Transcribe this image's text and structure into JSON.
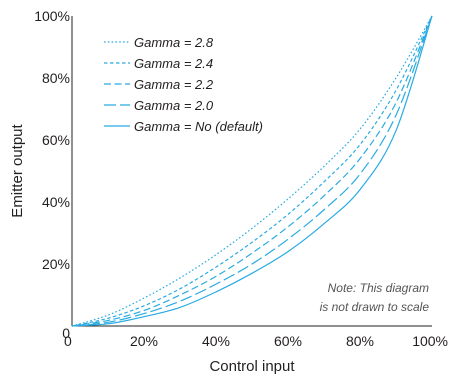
{
  "chart_data": {
    "type": "line",
    "title": "",
    "xlabel": "Control input",
    "ylabel": "Emitter output",
    "xlim": [
      0,
      100
    ],
    "ylim": [
      0,
      100
    ],
    "x_ticks": [
      "0",
      "20%",
      "40%",
      "60%",
      "80%",
      "100%"
    ],
    "y_ticks": [
      "0",
      "20%",
      "40%",
      "60%",
      "80%",
      "100%"
    ],
    "grid": false,
    "legend_position": "top-left",
    "line_color": "#29abe2",
    "x": [
      0,
      10,
      20,
      30,
      40,
      50,
      60,
      70,
      80,
      90,
      100
    ],
    "series": [
      {
        "name": "Gamma = 2.8",
        "style": "dotted",
        "values": [
          0,
          3.5,
          9,
          15.5,
          23,
          31.5,
          41,
          51.5,
          63.5,
          80,
          100
        ]
      },
      {
        "name": "Gamma = 2.4",
        "style": "short-dash",
        "values": [
          0,
          2.5,
          6.5,
          12,
          19,
          27,
          36,
          46.5,
          58.5,
          76,
          100
        ]
      },
      {
        "name": "Gamma = 2.2",
        "style": "dash",
        "values": [
          0,
          1.8,
          5,
          10,
          16,
          23.5,
          32,
          42,
          54,
          72,
          100
        ]
      },
      {
        "name": "Gamma = 2.0",
        "style": "long-dash",
        "values": [
          0,
          1.2,
          4,
          8,
          13.5,
          20,
          28,
          37.5,
          49,
          68,
          100
        ]
      },
      {
        "name": "Gamma = No (default)",
        "style": "solid",
        "values": [
          0,
          0.7,
          3,
          6,
          11,
          17,
          24,
          33,
          44,
          63,
          100
        ]
      }
    ],
    "annotation": [
      "Note: This diagram",
      "is not drawn to scale"
    ]
  }
}
